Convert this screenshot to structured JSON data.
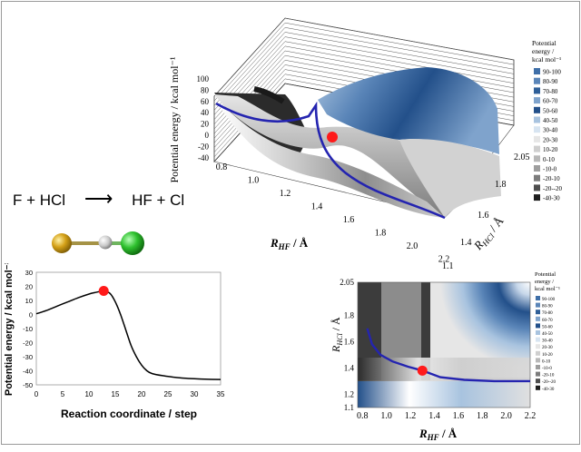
{
  "reaction": {
    "reactants": "F + HCl",
    "arrow": "⟶",
    "products": "HF + Cl"
  },
  "molecule": {
    "atom_colors": [
      "#d4a017",
      "#c8c8c8",
      "#2ec02e"
    ]
  },
  "chart_data": [
    {
      "type": "surface3d",
      "zlabel": "Potential energy / kcal mol⁻¹",
      "xlabel_main": "R",
      "xlabel_sub": "HF",
      "xlabel_unit": " / Å",
      "ylabel_main": "R",
      "ylabel_sub": "HCl",
      "ylabel_unit": " / Å",
      "z_ticks": [
        "100",
        "80",
        "60",
        "40",
        "20",
        "0",
        "-20",
        "-40"
      ],
      "x_ticks": [
        "0.8",
        "1.0",
        "1.2",
        "1.4",
        "1.6",
        "1.8",
        "2.0",
        "2.2"
      ],
      "y_ticks": [
        "1.1",
        "1.4",
        "1.6",
        "1.8",
        "2.05"
      ],
      "zlim": [
        -40,
        100
      ],
      "legend_title": [
        "Potential",
        "energy /",
        "kcal mol⁻¹"
      ],
      "legend": [
        {
          "label": "90-100",
          "color": "#3f6fa8"
        },
        {
          "label": "80-90",
          "color": "#5a85b8"
        },
        {
          "label": "70-80",
          "color": "#2f5f98"
        },
        {
          "label": "60-70",
          "color": "#7fa3cc"
        },
        {
          "label": "50-60",
          "color": "#23508a"
        },
        {
          "label": "40-50",
          "color": "#a8c3df"
        },
        {
          "label": "30-40",
          "color": "#d7e4f1"
        },
        {
          "label": "20-30",
          "color": "#e6e6e6"
        },
        {
          "label": "10-20",
          "color": "#cfcfcf"
        },
        {
          "label": "0-10",
          "color": "#b8b8b8"
        },
        {
          "label": "-10-0",
          "color": "#9e9e9e"
        },
        {
          "label": "-20-10",
          "color": "#7c7c7c"
        },
        {
          "label": "-20--20",
          "color": "#4e4e4e"
        },
        {
          "label": "-40-30",
          "color": "#1e1e1e"
        }
      ],
      "legend_position": "right",
      "transition_state_marker": "red dot"
    },
    {
      "type": "contour",
      "xlabel_main": "R",
      "xlabel_sub": "HF",
      "xlabel_unit": " / Å",
      "ylabel_main": "R",
      "ylabel_sub": "HCl",
      "ylabel_unit": " / Å",
      "x_ticks": [
        "0.8",
        "1.0",
        "1.2",
        "1.4",
        "1.6",
        "1.8",
        "2.0",
        "2.2"
      ],
      "y_ticks": [
        "2.05",
        "1.8",
        "1.6",
        "1.4",
        "1.2",
        "1.1"
      ],
      "xlim": [
        0.76,
        2.2
      ],
      "ylim": [
        1.1,
        2.05
      ],
      "path": {
        "x": [
          0.84,
          0.88,
          0.95,
          1.05,
          1.18,
          1.3,
          1.45,
          1.65,
          1.9,
          2.2
        ],
        "y": [
          1.7,
          1.58,
          1.5,
          1.45,
          1.41,
          1.38,
          1.33,
          1.31,
          1.3,
          1.3
        ]
      },
      "transition_state": {
        "x": 1.3,
        "y": 1.38
      },
      "legend_title": [
        "Potential",
        "energy /",
        "kcal mol⁻¹"
      ],
      "legend": [
        "90-100",
        "80-90",
        "70-80",
        "60-70",
        "50-60",
        "40-50",
        "30-40",
        "20-30",
        "10-20",
        "0-10",
        "-10-0",
        "-20-10",
        "-20--20",
        "-40-30"
      ],
      "legend_position": "right"
    },
    {
      "type": "line",
      "xlabel": "Reaction coordinate / step",
      "ylabel": "Potential energy / kcal mol⁻¹",
      "xlim": [
        0,
        35
      ],
      "ylim": [
        -50,
        30
      ],
      "x_ticks": [
        "0",
        "5",
        "10",
        "15",
        "20",
        "25",
        "30",
        "35"
      ],
      "y_ticks": [
        "30",
        "20",
        "10",
        "0",
        "-10",
        "-20",
        "-30",
        "-40",
        "-50"
      ],
      "series": [
        {
          "x": [
            0,
            2,
            4,
            6,
            8,
            10,
            11,
            12,
            12.8,
            14,
            15,
            16,
            17,
            18,
            19,
            20,
            21,
            22,
            24,
            26,
            28,
            30,
            32,
            35
          ],
          "y": [
            0.5,
            3,
            6,
            9,
            12,
            14.5,
            15.5,
            16.3,
            16.8,
            15,
            9,
            0,
            -11,
            -22,
            -30,
            -36,
            -40,
            -42,
            -43.5,
            -44.5,
            -45.2,
            -45.7,
            -46,
            -46.2
          ],
          "color": "#000000"
        }
      ],
      "transition_state": {
        "x": 12.8,
        "y": 16.8
      }
    }
  ]
}
